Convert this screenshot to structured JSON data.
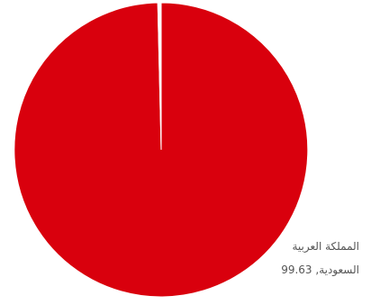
{
  "chart_data": {
    "type": "pie",
    "slices": [
      {
        "label": "المملكة العربية السعودية",
        "value": 99.63,
        "color": "#d9000d"
      },
      {
        "label": "",
        "value": 0.37,
        "color": "#ffffff"
      }
    ],
    "data_label": "المملكة العربية السعودية, 99.63"
  }
}
